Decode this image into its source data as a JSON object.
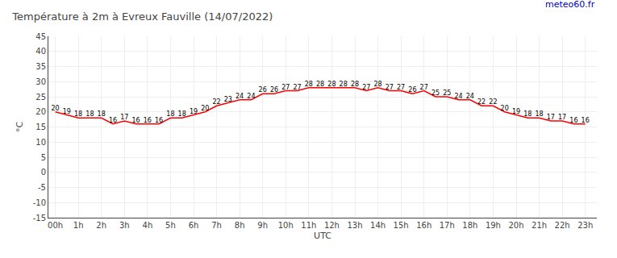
{
  "chart_data": {
    "type": "line",
    "title": "Température à 2m à Evreux Fauville (14/07/2022)",
    "annotations": [
      "meteo60.fr"
    ],
    "xlabel": "UTC",
    "ylabel": "°C",
    "x": [
      0,
      0.5,
      1,
      1.5,
      2,
      2.5,
      3,
      3.5,
      4,
      4.5,
      5,
      5.5,
      6,
      6.5,
      7,
      7.5,
      8,
      8.5,
      9,
      9.5,
      10,
      10.5,
      11,
      11.5,
      12,
      12.5,
      13,
      13.5,
      14,
      14.5,
      15,
      15.5,
      16,
      16.5,
      17,
      17.5,
      18,
      18.5,
      19,
      19.5,
      20,
      20.5,
      21,
      21.5,
      22,
      22.5,
      23
    ],
    "series": [
      {
        "color": "#ff0000",
        "values": [
          20,
          19,
          18,
          18,
          18,
          16,
          17,
          16,
          16,
          16,
          18,
          18,
          19,
          20,
          22,
          23,
          24,
          24,
          26,
          26,
          27,
          27,
          28,
          28,
          28,
          28,
          28,
          27,
          28,
          27,
          27,
          26,
          27,
          25,
          25,
          24,
          24,
          22,
          22,
          20,
          19,
          18,
          18,
          17,
          17,
          16,
          16
        ]
      }
    ],
    "xlim": [
      -0.3,
      23.5
    ],
    "xticks": [
      {
        "value": 0,
        "label": "00h"
      },
      {
        "value": 1,
        "label": "1h"
      },
      {
        "value": 2,
        "label": "2h"
      },
      {
        "value": 3,
        "label": "3h"
      },
      {
        "value": 4,
        "label": "4h"
      },
      {
        "value": 5,
        "label": "5h"
      },
      {
        "value": 6,
        "label": "6h"
      },
      {
        "value": 7,
        "label": "7h"
      },
      {
        "value": 8,
        "label": "8h"
      },
      {
        "value": 9,
        "label": "9h"
      },
      {
        "value": 10,
        "label": "10h"
      },
      {
        "value": 11,
        "label": "11h"
      },
      {
        "value": 12,
        "label": "12h"
      },
      {
        "value": 13,
        "label": "13h"
      },
      {
        "value": 14,
        "label": "14h"
      },
      {
        "value": 15,
        "label": "15h"
      },
      {
        "value": 16,
        "label": "16h"
      },
      {
        "value": 17,
        "label": "17h"
      },
      {
        "value": 18,
        "label": "18h"
      },
      {
        "value": 19,
        "label": "19h"
      },
      {
        "value": 20,
        "label": "20h"
      },
      {
        "value": 21,
        "label": "21h"
      },
      {
        "value": 22,
        "label": "22h"
      },
      {
        "value": 23,
        "label": "23h"
      }
    ],
    "ylim": [
      -15,
      45
    ],
    "yticks": [
      -15,
      -10,
      -5,
      0,
      5,
      10,
      15,
      20,
      25,
      30,
      35,
      40,
      45
    ],
    "grid": true,
    "data_labels": true
  }
}
